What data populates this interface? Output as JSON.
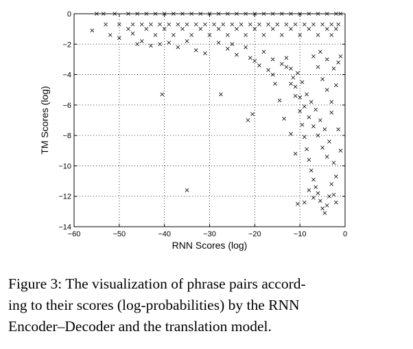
{
  "chart_data": {
    "type": "scatter",
    "title": "",
    "xlabel": "RNN Scores (log)",
    "ylabel": "TM Scores (log)",
    "xlim": [
      -60,
      0
    ],
    "ylim": [
      -14,
      0
    ],
    "xticks": [
      -60,
      -50,
      -40,
      -30,
      -20,
      -10,
      0
    ],
    "yticks": [
      -14,
      -12,
      -10,
      -8,
      -6,
      -4,
      -2,
      0
    ],
    "grid": true,
    "marker": "x",
    "color": "#000000",
    "series": [
      {
        "points": [
          [
            -55,
            0
          ],
          [
            -53.5,
            0
          ],
          [
            -51,
            0
          ],
          [
            -48,
            0
          ],
          [
            -46,
            0
          ],
          [
            -44,
            0
          ],
          [
            -42,
            0
          ],
          [
            -40,
            0
          ],
          [
            -38,
            0
          ],
          [
            -36,
            0
          ],
          [
            -34,
            0
          ],
          [
            -32,
            0
          ],
          [
            -30,
            0
          ],
          [
            -28,
            0
          ],
          [
            -26,
            0
          ],
          [
            -24,
            0
          ],
          [
            -22,
            0
          ],
          [
            -20,
            0
          ],
          [
            -18,
            0
          ],
          [
            -16,
            0
          ],
          [
            -14,
            0
          ],
          [
            -12,
            0
          ],
          [
            -10,
            0
          ],
          [
            -8,
            0
          ],
          [
            -6,
            0
          ],
          [
            -4,
            0
          ],
          [
            -2,
            0
          ],
          [
            -1,
            0
          ],
          [
            -53,
            -0.7
          ],
          [
            -50,
            -0.7
          ],
          [
            -47,
            -0.7
          ],
          [
            -45,
            -0.7
          ],
          [
            -43,
            -0.7
          ],
          [
            -41,
            -0.7
          ],
          [
            -39,
            -0.7
          ],
          [
            -37,
            -0.7
          ],
          [
            -35,
            -0.7
          ],
          [
            -33,
            -0.7
          ],
          [
            -31,
            -0.7
          ],
          [
            -29,
            -0.7
          ],
          [
            -27,
            -0.7
          ],
          [
            -25,
            -0.7
          ],
          [
            -23,
            -0.7
          ],
          [
            -21,
            -0.7
          ],
          [
            -19,
            -0.7
          ],
          [
            -17,
            -0.7
          ],
          [
            -15,
            -0.7
          ],
          [
            -13,
            -0.7
          ],
          [
            -11,
            -0.7
          ],
          [
            -9,
            -0.7
          ],
          [
            -7,
            -0.7
          ],
          [
            -5,
            -0.7
          ],
          [
            -3,
            -0.7
          ],
          [
            -1.5,
            -0.7
          ],
          [
            -48,
            -1.0
          ],
          [
            -44,
            -1.0
          ],
          [
            -40,
            -1.0
          ],
          [
            -36,
            -1.0
          ],
          [
            -32,
            -1.0
          ],
          [
            -28,
            -1.0
          ],
          [
            -24,
            -1.0
          ],
          [
            -20,
            -1.0
          ],
          [
            -16,
            -1.0
          ],
          [
            -12,
            -1.0
          ],
          [
            -8,
            -1.0
          ],
          [
            -4,
            -1.0
          ],
          [
            -2,
            -1.0
          ],
          [
            -56,
            -1.1
          ],
          [
            -52,
            -1.4
          ],
          [
            -47,
            -1.3
          ],
          [
            -42,
            -1.4
          ],
          [
            -38,
            -1.4
          ],
          [
            -34,
            -1.4
          ],
          [
            -30,
            -1.4
          ],
          [
            -26,
            -1.4
          ],
          [
            -22,
            -1.4
          ],
          [
            -18,
            -1.4
          ],
          [
            -14,
            -1.4
          ],
          [
            -10,
            -1.4
          ],
          [
            -6,
            -1.4
          ],
          [
            -3,
            -1.4
          ],
          [
            -50,
            -1.6
          ],
          [
            -45,
            -1.8
          ],
          [
            -41,
            -2.0
          ],
          [
            -37,
            -2.2
          ],
          [
            -33,
            -2.4
          ],
          [
            -31,
            -2.6
          ],
          [
            -26,
            -2.3
          ],
          [
            -24,
            -2.7
          ],
          [
            -21,
            -2.9
          ],
          [
            -18,
            -2.5
          ],
          [
            -16,
            -3.0
          ],
          [
            -14,
            -3.3
          ],
          [
            -13,
            -2.9
          ],
          [
            -12,
            -3.6
          ],
          [
            -11.5,
            -4.2
          ],
          [
            -11,
            -4.8
          ],
          [
            -10.5,
            -3.9
          ],
          [
            -10,
            -5.5
          ],
          [
            -9.5,
            -4.5
          ],
          [
            -9,
            -6.1
          ],
          [
            -8.5,
            -5.3
          ],
          [
            -8,
            -6.8
          ],
          [
            -7.5,
            -5.8
          ],
          [
            -7,
            -7.4
          ],
          [
            -6.5,
            -6.3
          ],
          [
            -6,
            -8.0
          ],
          [
            -5.5,
            -7.0
          ],
          [
            -5,
            -8.8
          ],
          [
            -4.5,
            -7.6
          ],
          [
            -4,
            -9.4
          ],
          [
            -3.5,
            -8.4
          ],
          [
            -3,
            -6.5
          ],
          [
            -2.5,
            -9.8
          ],
          [
            -2,
            -10.7
          ],
          [
            -1.5,
            -7.6
          ],
          [
            -1,
            -9.0
          ],
          [
            -13,
            -3.5
          ],
          [
            -12,
            -4.6
          ],
          [
            -11,
            -5.4
          ],
          [
            -10,
            -6.4
          ],
          [
            -9.5,
            -7.3
          ],
          [
            -9,
            -8.1
          ],
          [
            -8.5,
            -8.9
          ],
          [
            -8,
            -9.6
          ],
          [
            -7.5,
            -10.3
          ],
          [
            -7,
            -10.9
          ],
          [
            -6.5,
            -11.4
          ],
          [
            -6,
            -11.8
          ],
          [
            -5.5,
            -12.3
          ],
          [
            -5,
            -12.8
          ],
          [
            -4.5,
            -13.1
          ],
          [
            -4,
            -12.6
          ],
          [
            -3.5,
            -12.0
          ],
          [
            -3,
            -11.2
          ],
          [
            -2.5,
            -11.9
          ],
          [
            -2,
            -12.4
          ],
          [
            -8,
            -11.6
          ],
          [
            -7,
            -12.1
          ],
          [
            -10.5,
            -12.5
          ],
          [
            -9,
            -12.4
          ],
          [
            -11,
            -9.2
          ],
          [
            -12,
            -7.9
          ],
          [
            -13.5,
            -6.9
          ],
          [
            -14.5,
            -5.7
          ],
          [
            -15.5,
            -4.6
          ],
          [
            -16,
            -4.0
          ],
          [
            -17,
            -3.7
          ],
          [
            -19,
            -3.4
          ],
          [
            -20,
            -3.1
          ],
          [
            -22,
            -2.2
          ],
          [
            -25,
            -2.0
          ],
          [
            -28,
            -1.9
          ],
          [
            -35,
            -1.8
          ],
          [
            -39,
            -1.9
          ],
          [
            -43,
            -2.1
          ],
          [
            -46,
            -2.0
          ],
          [
            -6,
            -3.5
          ],
          [
            -5,
            -4.3
          ],
          [
            -4,
            -5.0
          ],
          [
            -3,
            -5.8
          ],
          [
            -2,
            -4.7
          ],
          [
            -1.5,
            -3.2
          ],
          [
            -7,
            -2.8
          ],
          [
            -5.5,
            -2.5
          ],
          [
            -4,
            -3.0
          ],
          [
            -2.5,
            -3.6
          ],
          [
            -1,
            -2.8
          ],
          [
            -40.5,
            -5.3
          ],
          [
            -27.5,
            -5.3
          ],
          [
            -21.5,
            -7.0
          ],
          [
            -35,
            -11.6
          ],
          [
            -20.5,
            -6.6
          ]
        ]
      }
    ]
  },
  "caption": {
    "lines": [
      "Figure 3: The visualization of phrase pairs accord-",
      "ing to their scores (log-probabilities) by the RNN",
      "Encoder–Decoder and the translation model."
    ]
  }
}
